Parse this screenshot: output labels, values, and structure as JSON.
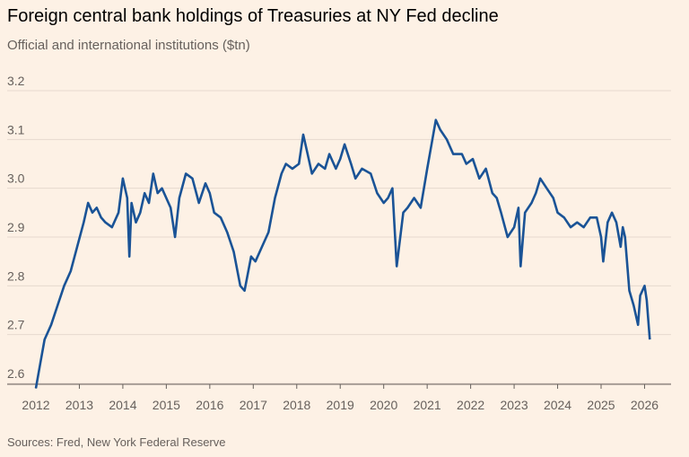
{
  "chart_data": {
    "type": "line",
    "title": "Foreign central bank holdings of Treasuries at NY Fed decline",
    "subtitle": "Official and international institutions ($tn)",
    "source": "Sources: Fred, New York Federal Reserve",
    "xlim": [
      2012,
      2026.3
    ],
    "xticks": [
      2012,
      2013,
      2014,
      2015,
      2016,
      2017,
      2018,
      2019,
      2020,
      2021,
      2022,
      2023,
      2024,
      2025,
      2026
    ],
    "ylim": [
      2.6,
      3.2
    ],
    "yticks": [
      {
        "value": 2.6,
        "label": "2.6"
      },
      {
        "value": 2.7,
        "label": "2.7"
      },
      {
        "value": 2.8,
        "label": "2.8"
      },
      {
        "value": 2.9,
        "label": "2.9"
      },
      {
        "value": 3.0,
        "label": "3.0"
      },
      {
        "value": 3.1,
        "label": "3.1"
      },
      {
        "value": 3.2,
        "label": "3.2"
      }
    ],
    "grid": true,
    "series": [
      {
        "color": "#1a5396",
        "x": [
          2012.0,
          2012.1,
          2012.2,
          2012.35,
          2012.5,
          2012.65,
          2012.8,
          2012.95,
          2013.1,
          2013.2,
          2013.3,
          2013.4,
          2013.5,
          2013.6,
          2013.75,
          2013.9,
          2014.0,
          2014.1,
          2014.15,
          2014.2,
          2014.3,
          2014.4,
          2014.5,
          2014.6,
          2014.7,
          2014.8,
          2014.9,
          2015.1,
          2015.2,
          2015.3,
          2015.45,
          2015.6,
          2015.75,
          2015.9,
          2016.0,
          2016.1,
          2016.25,
          2016.4,
          2016.55,
          2016.7,
          2016.8,
          2016.95,
          2017.05,
          2017.2,
          2017.35,
          2017.5,
          2017.65,
          2017.75,
          2017.9,
          2018.05,
          2018.15,
          2018.25,
          2018.35,
          2018.5,
          2018.65,
          2018.75,
          2018.9,
          2019.0,
          2019.1,
          2019.25,
          2019.35,
          2019.5,
          2019.7,
          2019.85,
          2020.0,
          2020.1,
          2020.2,
          2020.3,
          2020.45,
          2020.55,
          2020.7,
          2020.85,
          2021.0,
          2021.1,
          2021.2,
          2021.3,
          2021.45,
          2021.6,
          2021.8,
          2021.9,
          2022.05,
          2022.2,
          2022.35,
          2022.5,
          2022.6,
          2022.7,
          2022.85,
          2023.0,
          2023.1,
          2023.15,
          2023.25,
          2023.4,
          2023.5,
          2023.6,
          2023.75,
          2023.9,
          2024.0,
          2024.15,
          2024.3,
          2024.45,
          2024.6,
          2024.75,
          2024.9,
          2025.0,
          2025.05,
          2025.15,
          2025.25,
          2025.35,
          2025.45,
          2025.5,
          2025.55,
          2025.65,
          2025.75,
          2025.85,
          2025.9,
          2026.0,
          2026.05,
          2026.12
        ],
        "values": [
          2.59,
          2.64,
          2.69,
          2.72,
          2.76,
          2.8,
          2.83,
          2.88,
          2.93,
          2.97,
          2.95,
          2.96,
          2.94,
          2.93,
          2.92,
          2.95,
          3.02,
          2.98,
          2.86,
          2.97,
          2.93,
          2.95,
          2.99,
          2.97,
          3.03,
          2.99,
          3.0,
          2.96,
          2.9,
          2.98,
          3.03,
          3.02,
          2.97,
          3.01,
          2.99,
          2.95,
          2.94,
          2.91,
          2.87,
          2.8,
          2.79,
          2.86,
          2.85,
          2.88,
          2.91,
          2.98,
          3.03,
          3.05,
          3.04,
          3.05,
          3.11,
          3.07,
          3.03,
          3.05,
          3.04,
          3.07,
          3.04,
          3.06,
          3.09,
          3.05,
          3.02,
          3.04,
          3.03,
          2.99,
          2.97,
          2.98,
          3.0,
          2.84,
          2.95,
          2.96,
          2.98,
          2.96,
          3.04,
          3.09,
          3.14,
          3.12,
          3.1,
          3.07,
          3.07,
          3.05,
          3.06,
          3.02,
          3.04,
          2.99,
          2.98,
          2.95,
          2.9,
          2.92,
          2.96,
          2.84,
          2.95,
          2.97,
          2.99,
          3.02,
          3.0,
          2.98,
          2.95,
          2.94,
          2.92,
          2.93,
          2.92,
          2.94,
          2.94,
          2.9,
          2.85,
          2.93,
          2.95,
          2.93,
          2.88,
          2.92,
          2.9,
          2.79,
          2.76,
          2.72,
          2.78,
          2.8,
          2.77,
          2.69
        ]
      }
    ]
  }
}
